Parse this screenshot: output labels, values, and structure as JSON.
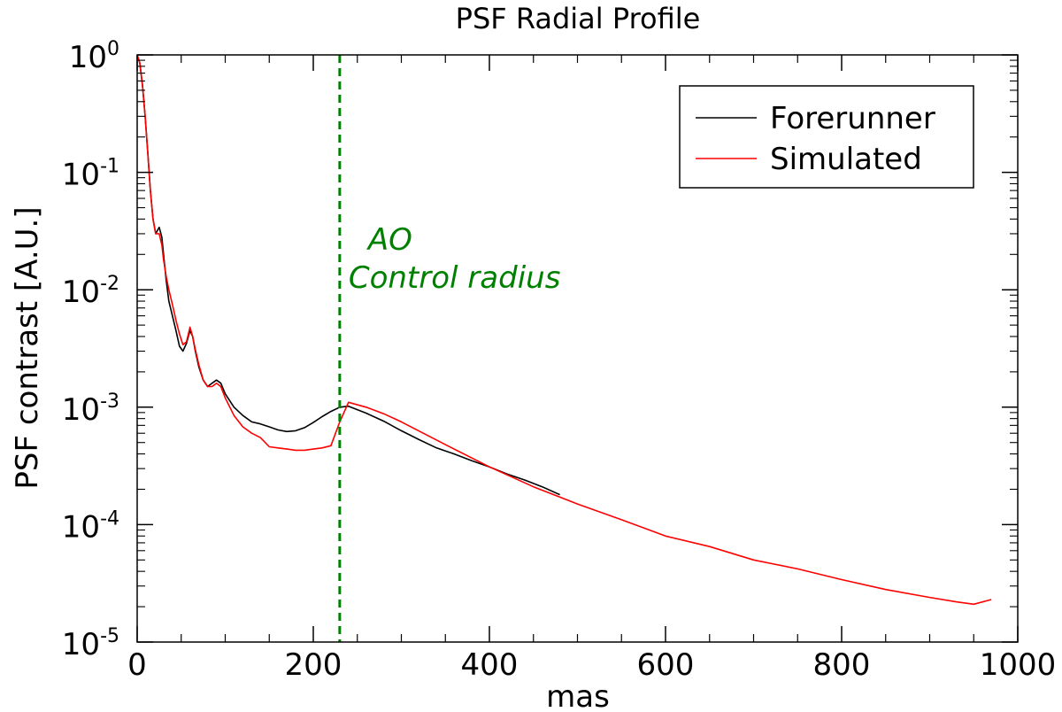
{
  "chart_data": {
    "type": "line",
    "title": "PSF Radial Profile",
    "xlabel": "mas",
    "ylabel": "PSF contrast [A.U.]",
    "xlim": [
      0,
      1000
    ],
    "ylim": [
      1e-05,
      1
    ],
    "yscale": "log",
    "grid": false,
    "legend_position": "top-right",
    "x_ticks": [
      {
        "value": 0,
        "label": "0"
      },
      {
        "value": 200,
        "label": "200"
      },
      {
        "value": 400,
        "label": "400"
      },
      {
        "value": 600,
        "label": "600"
      },
      {
        "value": 800,
        "label": "800"
      },
      {
        "value": 1000,
        "label": "1000"
      }
    ],
    "y_ticks": [
      {
        "value": 1,
        "base": "10",
        "exp": "0"
      },
      {
        "value": 0.1,
        "base": "10",
        "exp": "-1"
      },
      {
        "value": 0.01,
        "base": "10",
        "exp": "-2"
      },
      {
        "value": 0.001,
        "base": "10",
        "exp": "-3"
      },
      {
        "value": 0.0001,
        "base": "10",
        "exp": "-4"
      },
      {
        "value": 1e-05,
        "base": "10",
        "exp": "-5"
      }
    ],
    "series": [
      {
        "name": "Forerunner",
        "color": "#000000",
        "x": [
          0,
          3,
          6,
          9,
          12,
          15,
          18,
          21,
          25,
          28,
          30,
          33,
          36,
          40,
          44,
          48,
          52,
          56,
          60,
          63,
          66,
          70,
          75,
          80,
          85,
          90,
          95,
          100,
          110,
          120,
          130,
          140,
          150,
          160,
          170,
          180,
          190,
          200,
          210,
          220,
          230,
          240,
          260,
          280,
          300,
          320,
          340,
          360,
          380,
          400,
          420,
          440,
          460,
          480
        ],
        "y": [
          1.0,
          0.85,
          0.55,
          0.3,
          0.15,
          0.07,
          0.04,
          0.03,
          0.034,
          0.028,
          0.02,
          0.012,
          0.008,
          0.006,
          0.0045,
          0.0033,
          0.003,
          0.0035,
          0.0045,
          0.004,
          0.003,
          0.0022,
          0.0017,
          0.0015,
          0.0016,
          0.0017,
          0.0016,
          0.0013,
          0.001,
          0.00085,
          0.00075,
          0.00072,
          0.00068,
          0.00064,
          0.00062,
          0.00063,
          0.00067,
          0.00074,
          0.00083,
          0.00092,
          0.001,
          0.00102,
          0.00089,
          0.00076,
          0.00063,
          0.00053,
          0.00045,
          0.0004,
          0.00035,
          0.00031,
          0.00027,
          0.00024,
          0.00021,
          0.00018
        ]
      },
      {
        "name": "Simulated",
        "color": "#ff0000",
        "x": [
          0,
          3,
          6,
          9,
          12,
          15,
          18,
          21,
          25,
          28,
          30,
          33,
          36,
          40,
          44,
          48,
          52,
          56,
          60,
          63,
          66,
          70,
          75,
          80,
          85,
          90,
          95,
          100,
          110,
          120,
          130,
          140,
          150,
          160,
          170,
          180,
          190,
          200,
          210,
          220,
          230,
          240,
          260,
          280,
          300,
          350,
          400,
          450,
          500,
          550,
          600,
          650,
          700,
          750,
          800,
          850,
          900,
          930,
          950,
          970
        ],
        "y": [
          1.0,
          0.85,
          0.55,
          0.3,
          0.15,
          0.07,
          0.04,
          0.03,
          0.03,
          0.024,
          0.018,
          0.013,
          0.01,
          0.0075,
          0.0055,
          0.0042,
          0.0034,
          0.0036,
          0.0048,
          0.004,
          0.0031,
          0.0023,
          0.0017,
          0.0015,
          0.0015,
          0.0016,
          0.0015,
          0.0012,
          0.00085,
          0.00068,
          0.0006,
          0.00055,
          0.00046,
          0.00045,
          0.00044,
          0.00043,
          0.00043,
          0.00044,
          0.00045,
          0.00047,
          0.00075,
          0.0011,
          0.001,
          0.00088,
          0.00075,
          0.00048,
          0.00031,
          0.00021,
          0.00015,
          0.00011,
          8e-05,
          6.5e-05,
          5e-05,
          4.2e-05,
          3.4e-05,
          2.8e-05,
          2.4e-05,
          2.2e-05,
          2.1e-05,
          2.3e-05
        ]
      }
    ],
    "annotations": [
      {
        "type": "vline",
        "x": 230,
        "color": "#008000",
        "style": "dashed",
        "label_lines": [
          "AO",
          "Control radius"
        ]
      }
    ]
  }
}
